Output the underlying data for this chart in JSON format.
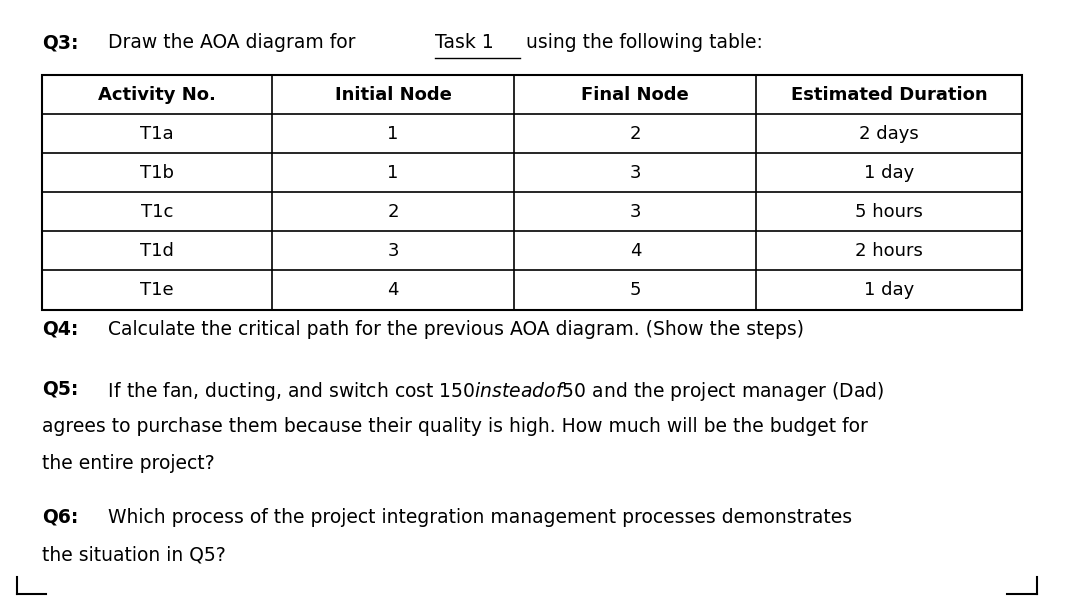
{
  "title_q3_bold": "Q3:",
  "title_q3_normal": " Draw the AOA diagram for ",
  "title_q3_underline": "Task 1",
  "title_q3_rest": " using the following table:",
  "table_headers": [
    "Activity No.",
    "Initial Node",
    "Final Node",
    "Estimated Duration"
  ],
  "table_rows": [
    [
      "T1a",
      "1",
      "2",
      "2 days"
    ],
    [
      "T1b",
      "1",
      "3",
      "1 day"
    ],
    [
      "T1c",
      "2",
      "3",
      "5 hours"
    ],
    [
      "T1d",
      "3",
      "4",
      "2 hours"
    ],
    [
      "T1e",
      "4",
      "5",
      "1 day"
    ]
  ],
  "q4_bold": "Q4:",
  "q4_rest": " Calculate the critical path for the previous AOA diagram. (Show the steps)",
  "q5_bold": "Q5:",
  "q5_line1": " If the fan, ducting, and switch cost 150$ instead of 50$ and the project manager (Dad)",
  "q5_line2": "agrees to purchase them because their quality is high. How much will be the budget for",
  "q5_line3": "the entire project?",
  "q6_bold": "Q6:",
  "q6_line1": " Which process of the project integration management processes demonstrates",
  "q6_line2": "the situation in Q5?",
  "bg_color": "#ffffff",
  "text_color": "#000000",
  "font_size_question": 13.5,
  "font_size_table": 13.0
}
